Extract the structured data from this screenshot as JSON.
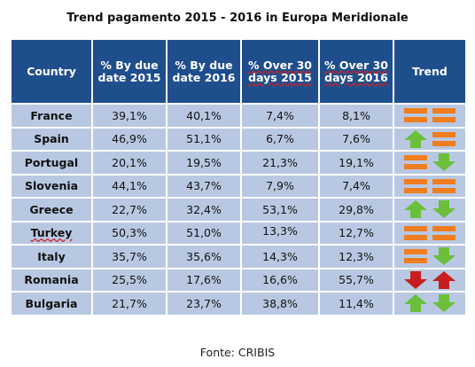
{
  "title": "Trend  pagamento 2015 - 2016 in Europa Meridionale",
  "source": "Fonte: CRIBIS",
  "headers": {
    "country": "Country",
    "by_due_2015": "% By due date 2015",
    "by_due_2016": "% By due date 2016",
    "over30_2015": "% Over 30 days 2015",
    "over30_2016": "% Over 30 days 2016",
    "trend": "Trend"
  },
  "rows": [
    {
      "country": "France",
      "by_due_2015": "39,1%",
      "by_due_2016": "40,1%",
      "over30_2015": "7,4%",
      "over30_2016": "8,1%",
      "trend": [
        "flat",
        "flat"
      ]
    },
    {
      "country": "Spain",
      "by_due_2015": "46,9%",
      "by_due_2016": "51,1%",
      "over30_2015": "6,7%",
      "over30_2016": "7,6%",
      "trend": [
        "up-green",
        "flat"
      ]
    },
    {
      "country": "Portugal",
      "by_due_2015": "20,1%",
      "by_due_2016": "19,5%",
      "over30_2015": "21,3%",
      "over30_2016": "19,1%",
      "trend": [
        "flat",
        "down-green"
      ]
    },
    {
      "country": "Slovenia",
      "by_due_2015": "44,1%",
      "by_due_2016": "43,7%",
      "over30_2015": "7,9%",
      "over30_2016": "7,4%",
      "trend": [
        "flat",
        "flat"
      ]
    },
    {
      "country": "Greece",
      "by_due_2015": "22,7%",
      "by_due_2016": "32,4%",
      "over30_2015": "53,1%",
      "over30_2016": "29,8%",
      "trend": [
        "up-green",
        "down-green"
      ]
    },
    {
      "country": "Turkey",
      "by_due_2015": "50,3%",
      "by_due_2016": "51,0%",
      "over30_2015": "13,3%",
      "over30_2016": "12,7%",
      "trend": [
        "flat",
        "flat"
      ]
    },
    {
      "country": "Italy",
      "by_due_2015": "35,7%",
      "by_due_2016": "35,6%",
      "over30_2015": "14,3%",
      "over30_2016": "12,3%",
      "trend": [
        "flat",
        "down-green"
      ]
    },
    {
      "country": "Romania",
      "by_due_2015": "25,5%",
      "by_due_2016": "17,6%",
      "over30_2015": "16,6%",
      "over30_2016": "55,7%",
      "trend": [
        "down-red",
        "up-red"
      ]
    },
    {
      "country": "Bulgaria",
      "by_due_2015": "21,7%",
      "by_due_2016": "23,7%",
      "over30_2015": "38,8%",
      "over30_2016": "11,4%",
      "trend": [
        "up-green",
        "down-green"
      ]
    }
  ],
  "colors": {
    "header_bg": "#1f4e8c",
    "cell_bg": "#b8c8e2",
    "flat": "#f07d1e",
    "green": "#6bbf3a",
    "red": "#c81e1e"
  }
}
